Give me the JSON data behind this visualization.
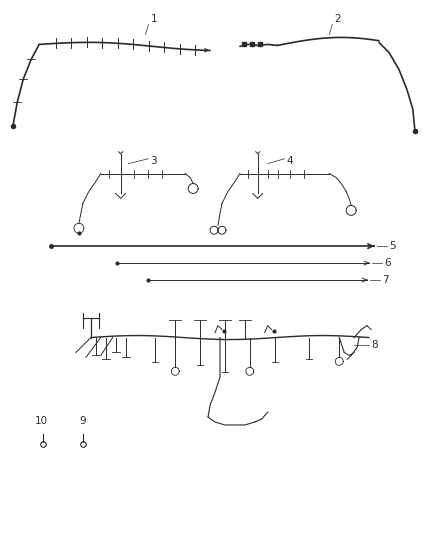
{
  "background_color": "#ffffff",
  "line_color": "#2a2a2a",
  "lw_main": 1.2,
  "lw_thin": 0.7,
  "lw_label": 0.5,
  "label_fontsize": 7.5
}
